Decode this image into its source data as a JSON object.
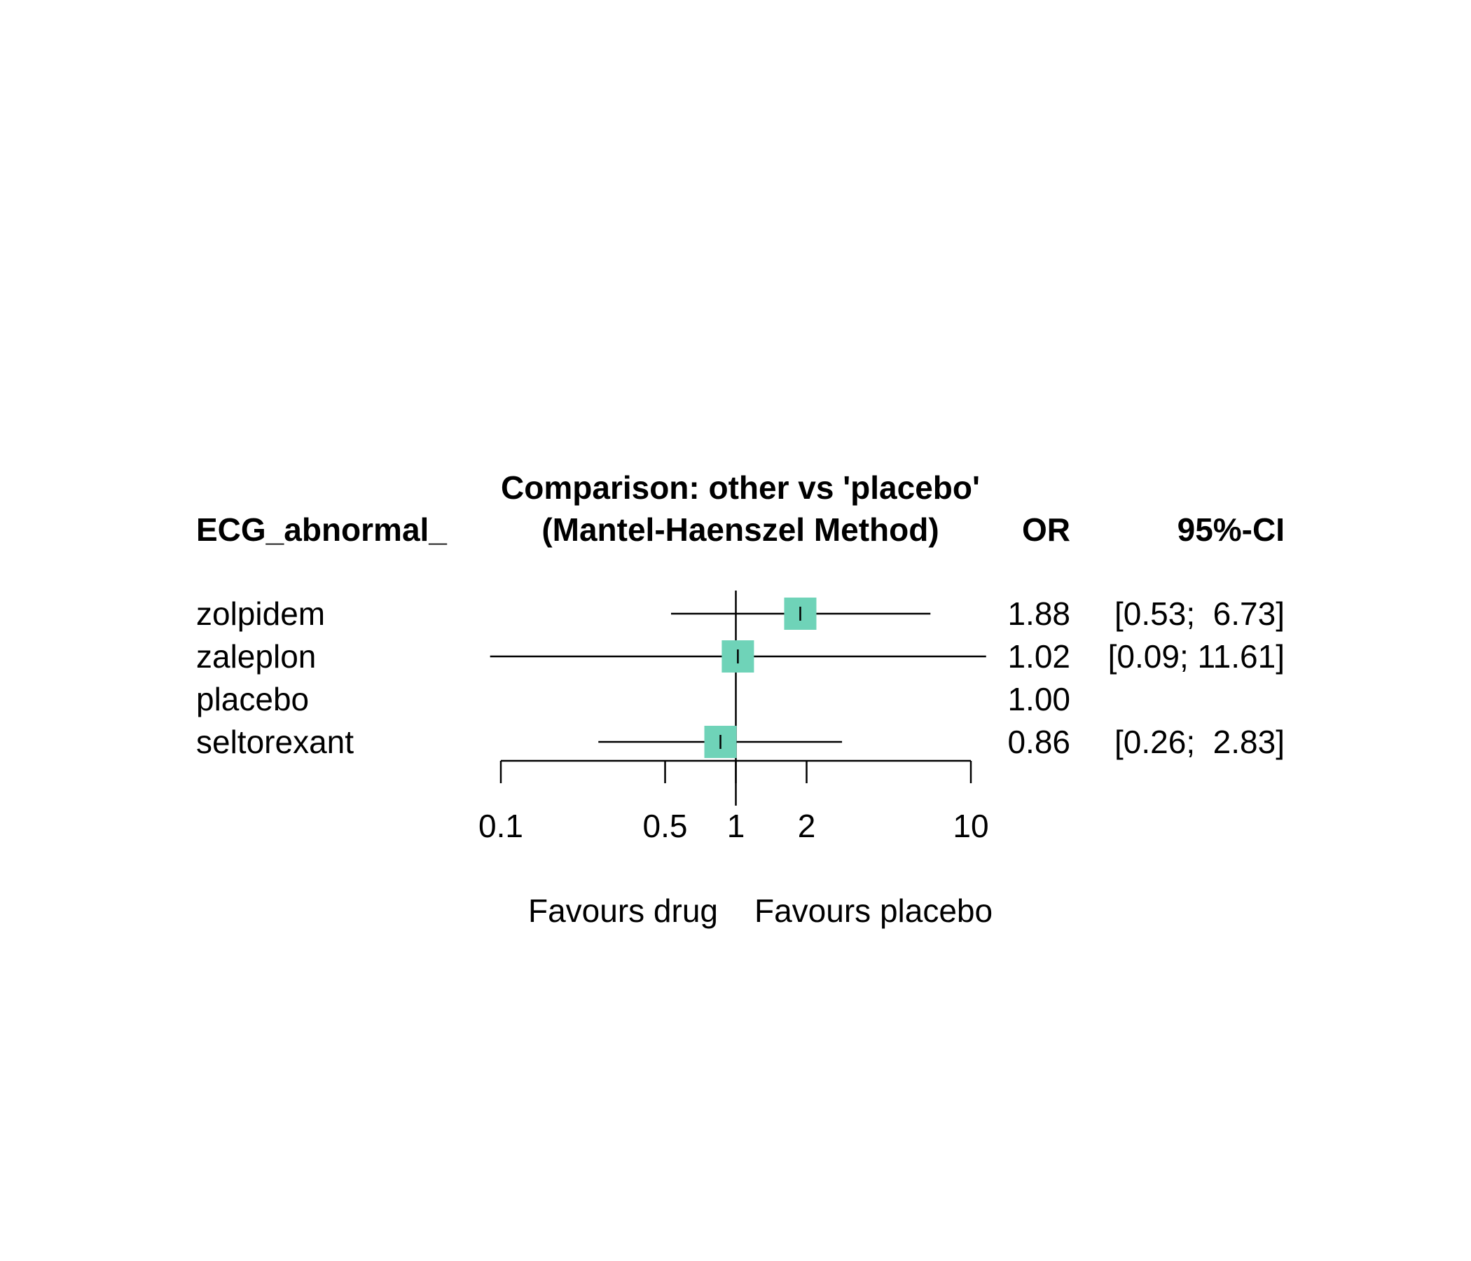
{
  "chart_data": {
    "type": "forest",
    "title": "Comparison: other vs 'placebo'",
    "subtitle": "(Mantel-Haenszel Method)",
    "column_headers": {
      "label": "ECG_abnormal_",
      "estimate": "OR",
      "ci": "95%-CI"
    },
    "x_scale": "log",
    "xlim": [
      0.1,
      10
    ],
    "reference_value": 1,
    "ticks": [
      {
        "value": 0.1,
        "label": "0.1"
      },
      {
        "value": 0.5,
        "label": "0.5"
      },
      {
        "value": 1,
        "label": "1"
      },
      {
        "value": 2,
        "label": "2"
      },
      {
        "value": 10,
        "label": "10"
      }
    ],
    "favours_left": "Favours drug",
    "favours_right": "Favours placebo",
    "rows": [
      {
        "label": "zolpidem",
        "or": 1.88,
        "lower": 0.53,
        "upper": 6.73,
        "or_text": "1.88",
        "ci_text": "[0.53;  6.73]"
      },
      {
        "label": "zaleplon",
        "or": 1.02,
        "lower": 0.09,
        "upper": 11.61,
        "or_text": "1.02",
        "ci_text": "[0.09; 11.61]"
      },
      {
        "label": "placebo",
        "or": 1.0,
        "lower": null,
        "upper": null,
        "or_text": "1.00",
        "ci_text": ""
      },
      {
        "label": "seltorexant",
        "or": 0.86,
        "lower": 0.26,
        "upper": 2.83,
        "or_text": "0.86",
        "ci_text": "[0.26;  2.83]"
      }
    ],
    "colors": {
      "box": "#6fd3b8",
      "line": "#000000"
    }
  }
}
